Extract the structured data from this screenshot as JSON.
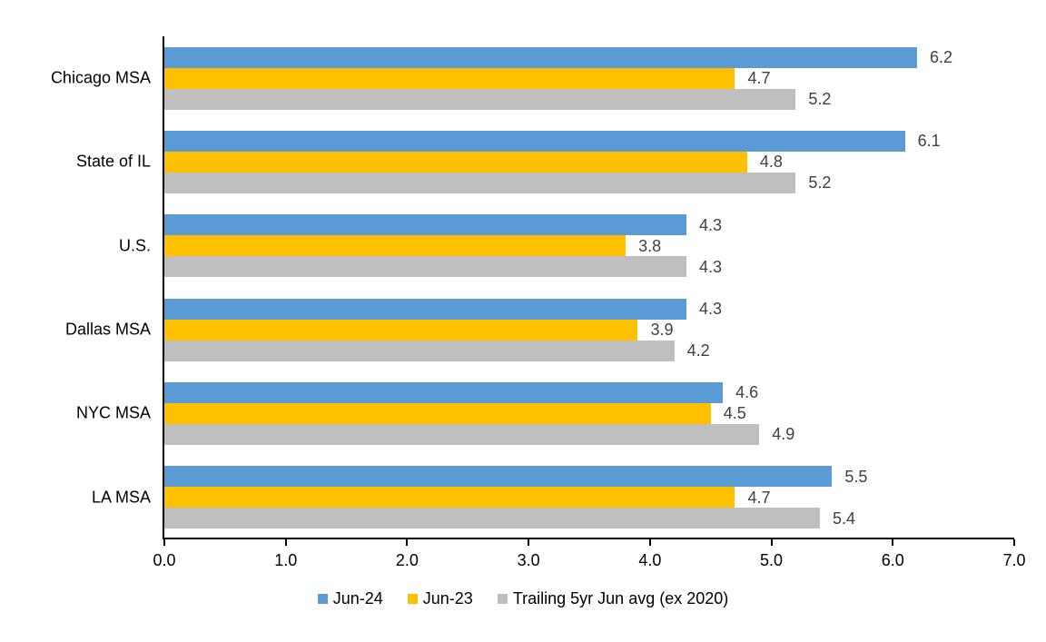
{
  "chart_data": {
    "type": "bar",
    "orientation": "horizontal",
    "title": "",
    "xlabel": "",
    "ylabel": "",
    "categories": [
      "Chicago MSA",
      "State of IL",
      "U.S.",
      "Dallas MSA",
      "NYC MSA",
      "LA MSA"
    ],
    "series": [
      {
        "name": "Jun-24",
        "color": "#5B9BD5",
        "values": [
          6.2,
          6.1,
          4.3,
          4.3,
          4.6,
          5.5
        ]
      },
      {
        "name": "Jun-23",
        "color": "#FFC000",
        "values": [
          4.7,
          4.8,
          3.8,
          3.9,
          4.5,
          4.7
        ]
      },
      {
        "name": "Trailing 5yr Jun avg (ex 2020)",
        "color": "#BFBFBF",
        "values": [
          5.2,
          5.2,
          4.3,
          4.2,
          4.9,
          5.4
        ]
      }
    ],
    "xlim": [
      0,
      7
    ],
    "x_ticks": [
      "0.0",
      "1.0",
      "2.0",
      "3.0",
      "4.0",
      "5.0",
      "6.0",
      "7.0"
    ],
    "grid": false,
    "data_labels": true,
    "data_label_decimals": 1,
    "legend_position": "bottom",
    "colors": {
      "axis": "#000000",
      "category_text": "#000000",
      "tick_text": "#000000",
      "data_label_text": "#404040",
      "background": "#ffffff"
    }
  }
}
